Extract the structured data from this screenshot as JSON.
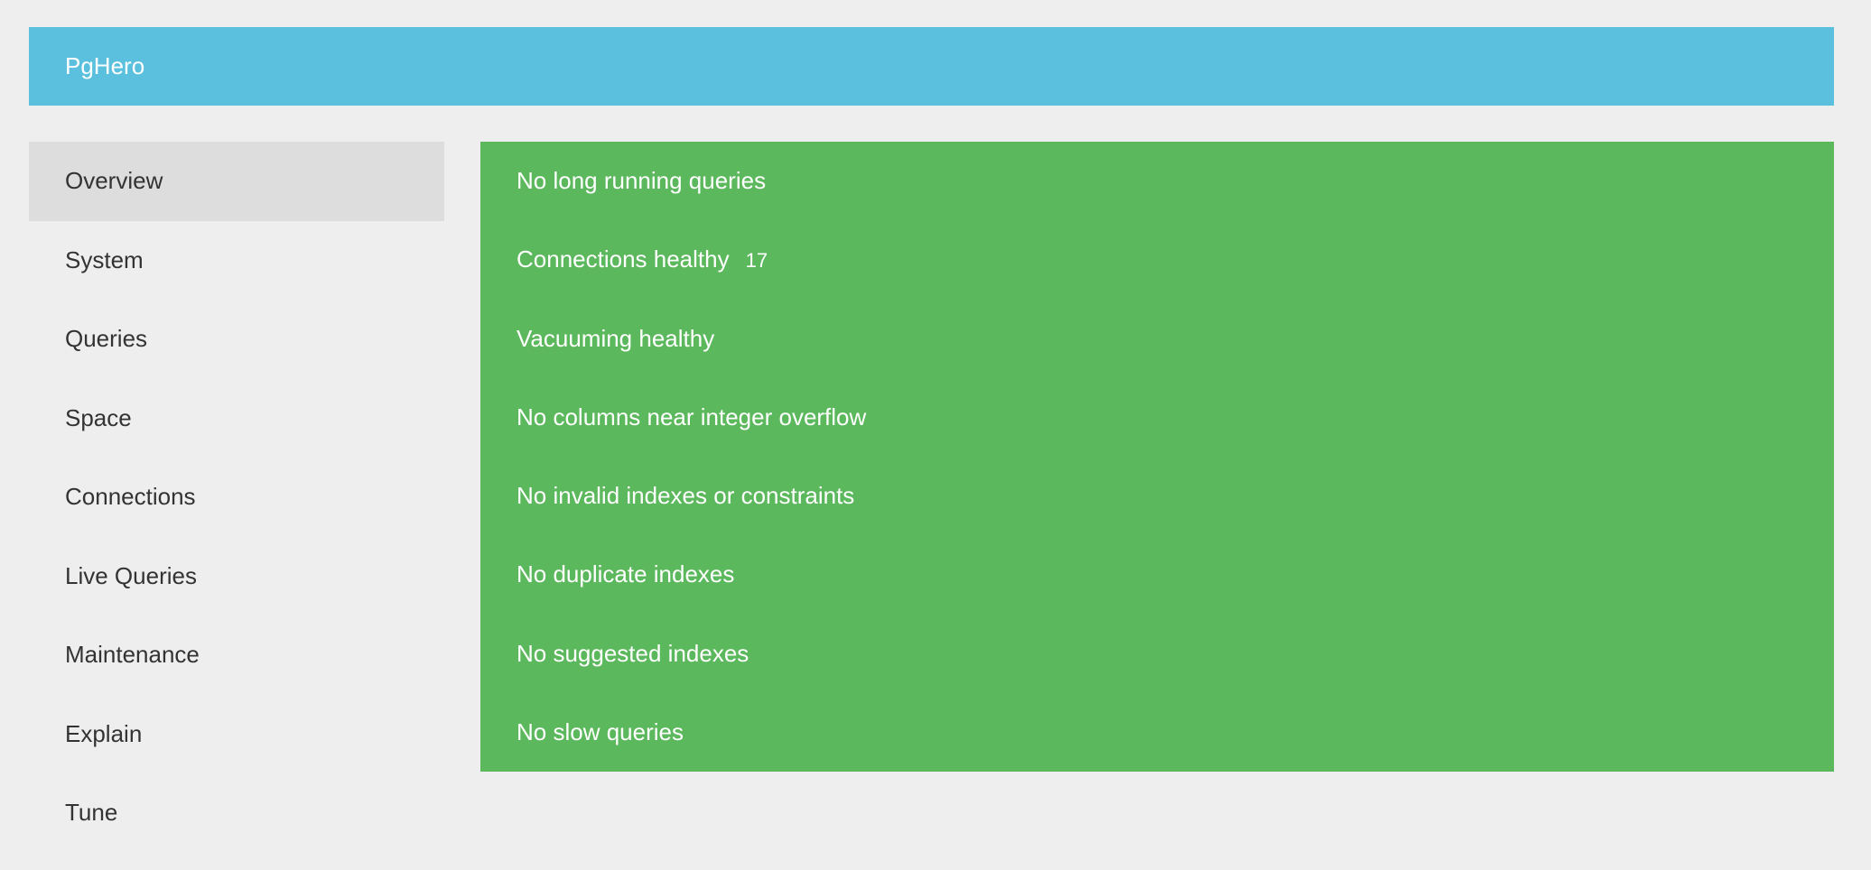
{
  "header": {
    "title": "PgHero"
  },
  "colors": {
    "header": "#5bc0de",
    "success": "#5cb85c",
    "background": "#eeeeee",
    "active_nav": "#dddddd"
  },
  "sidebar": {
    "active": "Overview",
    "items": [
      {
        "label": "Overview"
      },
      {
        "label": "System"
      },
      {
        "label": "Queries"
      },
      {
        "label": "Space"
      },
      {
        "label": "Connections"
      },
      {
        "label": "Live Queries"
      },
      {
        "label": "Maintenance"
      },
      {
        "label": "Explain"
      },
      {
        "label": "Tune"
      }
    ]
  },
  "checks": [
    {
      "label": "No long running queries"
    },
    {
      "label": "Connections healthy",
      "count": "17"
    },
    {
      "label": "Vacuuming healthy"
    },
    {
      "label": "No columns near integer overflow"
    },
    {
      "label": "No invalid indexes or constraints"
    },
    {
      "label": "No duplicate indexes"
    },
    {
      "label": "No suggested indexes"
    },
    {
      "label": "No slow queries"
    }
  ]
}
